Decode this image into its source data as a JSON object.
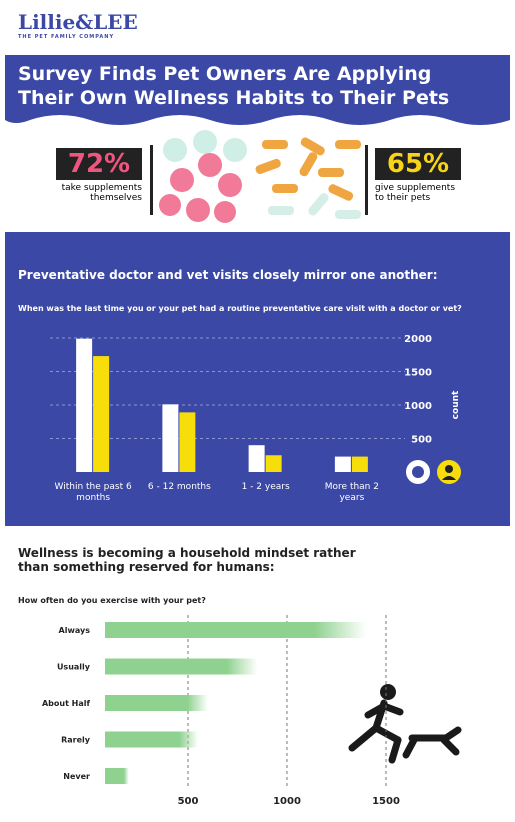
{
  "header": {
    "logo": "Lillie&LEE",
    "tagline": "THE PET FAMILY COMPANY",
    "title": "Survey Finds Pet Owners Are Applying Their Own Wellness Habits to Their Pets"
  },
  "stats": [
    {
      "value": "72%",
      "label": "take supplements themselves",
      "color": "#f0557f"
    },
    {
      "value": "65%",
      "label": "give supplements to their pets",
      "color": "#f7d417"
    }
  ],
  "chart_data": [
    {
      "type": "bar",
      "title": "Preventative doctor and vet visits closely mirror one another:",
      "subtitle": "When was the last time you or your pet had a routine preventative care visit with a doctor or vet?",
      "categories": [
        "Within the past 6 months",
        "6 - 12 months",
        "1 - 2 years",
        "More than 2 years"
      ],
      "series": [
        {
          "color": "#ffffff",
          "values": [
            1990,
            1010,
            400,
            230
          ]
        },
        {
          "color": "#f7de0a",
          "values": [
            1730,
            890,
            250,
            230
          ]
        }
      ],
      "ylabel": "count",
      "ylim": [
        0,
        2000
      ],
      "yticks": [
        500,
        1000,
        1500,
        2000
      ],
      "grid": true
    },
    {
      "type": "barh",
      "title": "Wellness is becoming a household mindset rather than something reserved for humans:",
      "subtitle": "How often do you exercise with your pet?",
      "categories": [
        "Always",
        "Usually",
        "About Half",
        "Rarely",
        "Never"
      ],
      "values": [
        1400,
        850,
        600,
        550,
        200
      ],
      "color": "#8fd18f",
      "xlim": [
        0,
        1750
      ],
      "xticks": [
        500,
        1000,
        1500
      ],
      "grid": true
    }
  ]
}
